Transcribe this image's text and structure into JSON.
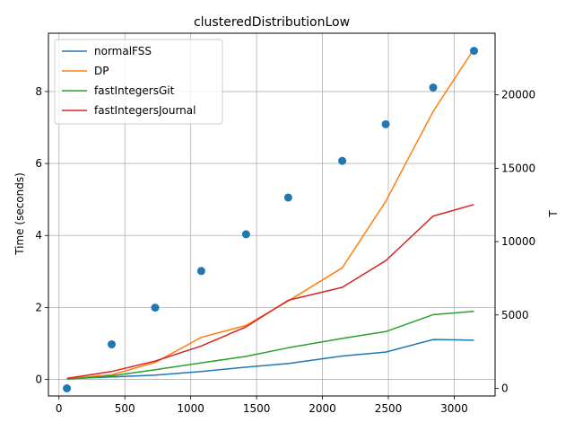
{
  "chart_data": {
    "type": "line",
    "title": "clusteredDistributionLow",
    "xlabel": "",
    "ylabel": "Time (seconds)",
    "y2label": "T",
    "xlim": [
      -80,
      3310
    ],
    "ylim": [
      -0.46,
      9.62
    ],
    "y2lim": [
      -520,
      24200
    ],
    "xticks": [
      0,
      500,
      1000,
      1500,
      2000,
      2500,
      3000
    ],
    "yticks": [
      0,
      2,
      4,
      6,
      8
    ],
    "y2ticks": [
      0,
      5000,
      10000,
      15000,
      20000
    ],
    "grid": true,
    "legend_position": "upper-left",
    "x": [
      60,
      400,
      730,
      1080,
      1420,
      1740,
      2150,
      2480,
      2840,
      3150
    ],
    "series": [
      {
        "name": "normalFSS",
        "color": "#1f77b4",
        "values": [
          0.02,
          0.07,
          0.12,
          0.22,
          0.34,
          0.44,
          0.65,
          0.76,
          1.11,
          1.09
        ]
      },
      {
        "name": "DP",
        "color": "#ff7f0e",
        "values": [
          0.02,
          0.13,
          0.47,
          1.17,
          1.5,
          2.18,
          3.1,
          4.95,
          7.45,
          9.18
        ]
      },
      {
        "name": "fastIntegersGit",
        "color": "#2ca02c",
        "values": [
          0.01,
          0.1,
          0.27,
          0.46,
          0.64,
          0.88,
          1.14,
          1.33,
          1.8,
          1.89
        ]
      },
      {
        "name": "fastIntegersJournal",
        "color": "#d62728",
        "values": [
          0.03,
          0.22,
          0.51,
          0.93,
          1.46,
          2.2,
          2.56,
          3.3,
          4.54,
          4.86
        ]
      }
    ],
    "scatter_secondary": {
      "color": "#1f77b4",
      "x": [
        60,
        400,
        730,
        1080,
        1420,
        1740,
        2150,
        2480,
        2840,
        3150
      ],
      "values": [
        0,
        3000,
        5500,
        8000,
        10500,
        13000,
        15500,
        18000,
        20500,
        23000
      ]
    }
  }
}
